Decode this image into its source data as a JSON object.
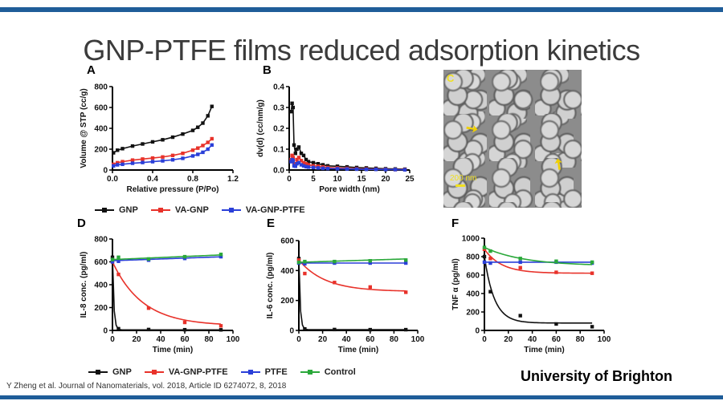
{
  "slide": {
    "title": "GNP-PTFE films reduced adsorption kinetics",
    "citation": "Y Zheng et al. Journal of Nanomaterials, vol. 2018, Article ID 6274072, 8, 2018",
    "affiliation": "University of Brighton",
    "bar_color": "#1f5d99"
  },
  "sem": {
    "label": "C",
    "scale_text": "200 nm"
  },
  "legend_abc": [
    {
      "name": "GNP",
      "color": "#111111"
    },
    {
      "name": "VA-GNP",
      "color": "#e8322a"
    },
    {
      "name": "VA-GNP-PTFE",
      "color": "#2a3fd8"
    }
  ],
  "legend_def": [
    {
      "name": "GNP",
      "color": "#111111"
    },
    {
      "name": "VA-GNP-PTFE",
      "color": "#e8322a"
    },
    {
      "name": "PTFE",
      "color": "#2a3fd8"
    },
    {
      "name": "Control",
      "color": "#2aa83a"
    }
  ],
  "chart_data": [
    {
      "panel": "A",
      "type": "line",
      "xlabel": "Relative pressure (P/Po)",
      "ylabel": "Volume @ STP (cc/g)",
      "xlim": [
        0,
        1.2
      ],
      "ylim": [
        0,
        800
      ],
      "xticks": [
        "0.0",
        "0.4",
        "0.8",
        "1.2"
      ],
      "xtick_values": [
        0,
        0.4,
        0.8,
        1.2
      ],
      "yticks": [
        "0",
        "200",
        "400",
        "600",
        "800"
      ],
      "ytick_values": [
        0,
        200,
        400,
        600,
        800
      ],
      "series": [
        {
          "name": "GNP",
          "color": "#111111",
          "x": [
            0.01,
            0.05,
            0.1,
            0.2,
            0.3,
            0.4,
            0.5,
            0.6,
            0.7,
            0.8,
            0.85,
            0.9,
            0.95,
            0.99
          ],
          "y": [
            165,
            190,
            205,
            230,
            250,
            270,
            290,
            315,
            345,
            380,
            410,
            450,
            520,
            610
          ]
        },
        {
          "name": "VA-GNP",
          "color": "#e8322a",
          "x": [
            0.01,
            0.05,
            0.1,
            0.2,
            0.3,
            0.4,
            0.5,
            0.6,
            0.7,
            0.8,
            0.85,
            0.9,
            0.95,
            0.99
          ],
          "y": [
            55,
            70,
            80,
            95,
            105,
            115,
            125,
            140,
            160,
            190,
            210,
            235,
            265,
            300
          ]
        },
        {
          "name": "VA-GNP-PTFE",
          "color": "#2a3fd8",
          "x": [
            0.01,
            0.05,
            0.1,
            0.2,
            0.3,
            0.4,
            0.5,
            0.6,
            0.7,
            0.8,
            0.85,
            0.9,
            0.95,
            0.99
          ],
          "y": [
            40,
            50,
            55,
            65,
            72,
            80,
            88,
            98,
            112,
            135,
            150,
            170,
            200,
            240
          ]
        }
      ]
    },
    {
      "panel": "B",
      "type": "line",
      "xlabel": "Pore width (nm)",
      "ylabel": "dv(d) (cc/nm/g)",
      "xlim": [
        0,
        25
      ],
      "ylim": [
        0,
        0.4
      ],
      "xticks": [
        "0",
        "5",
        "10",
        "15",
        "20",
        "25"
      ],
      "xtick_values": [
        0,
        5,
        10,
        15,
        20,
        25
      ],
      "yticks": [
        "0.0",
        "0.1",
        "0.2",
        "0.3",
        "0.4"
      ],
      "ytick_values": [
        0,
        0.1,
        0.2,
        0.3,
        0.4
      ],
      "series": [
        {
          "name": "GNP",
          "color": "#111111",
          "x": [
            0.4,
            0.6,
            0.8,
            1,
            1.3,
            1.6,
            2,
            2.5,
            3,
            3.5,
            4,
            5,
            6,
            7,
            8,
            10,
            12,
            14,
            16,
            18,
            20,
            22,
            24
          ],
          "y": [
            0.28,
            0.32,
            0.3,
            0.12,
            0.08,
            0.1,
            0.11,
            0.08,
            0.07,
            0.05,
            0.04,
            0.035,
            0.03,
            0.025,
            0.02,
            0.018,
            0.015,
            0.012,
            0.01,
            0.008,
            0.006,
            0.005,
            0.004
          ]
        },
        {
          "name": "VA-GNP",
          "color": "#e8322a",
          "x": [
            0.4,
            0.6,
            0.8,
            1,
            1.3,
            1.6,
            2,
            2.5,
            3,
            3.5,
            4,
            5,
            6,
            7,
            8,
            10,
            12,
            14,
            16,
            18,
            20,
            22,
            24
          ],
          "y": [
            0.05,
            0.07,
            0.06,
            0.03,
            0.025,
            0.05,
            0.06,
            0.045,
            0.035,
            0.03,
            0.025,
            0.02,
            0.018,
            0.015,
            0.012,
            0.01,
            0.008,
            0.006,
            0.005,
            0.004,
            0.003,
            0.002,
            0.002
          ]
        },
        {
          "name": "VA-GNP-PTFE",
          "color": "#2a3fd8",
          "x": [
            0.4,
            0.6,
            0.8,
            1,
            1.3,
            1.6,
            2,
            2.5,
            3,
            3.5,
            4,
            5,
            6,
            7,
            8,
            10,
            12,
            14,
            16,
            18,
            20,
            22,
            24
          ],
          "y": [
            0.04,
            0.05,
            0.045,
            0.02,
            0.018,
            0.03,
            0.035,
            0.025,
            0.02,
            0.016,
            0.014,
            0.012,
            0.01,
            0.008,
            0.007,
            0.006,
            0.005,
            0.004,
            0.003,
            0.003,
            0.002,
            0.002,
            0.001
          ]
        }
      ]
    },
    {
      "panel": "D",
      "type": "line",
      "xlabel": "Time (min)",
      "ylabel": "IL-8 conc. (pg/ml)",
      "xlim": [
        0,
        100
      ],
      "ylim": [
        0,
        800
      ],
      "xticks": [
        "0",
        "20",
        "40",
        "60",
        "80",
        "100"
      ],
      "xtick_values": [
        0,
        20,
        40,
        60,
        80,
        100
      ],
      "yticks": [
        "0",
        "200",
        "400",
        "600",
        "800"
      ],
      "ytick_values": [
        0,
        200,
        400,
        600,
        800
      ],
      "series": [
        {
          "name": "GNP",
          "color": "#111111",
          "curve": "exp",
          "params": [
            640,
            0.9,
            5
          ],
          "x": [
            0,
            5,
            30,
            60,
            90
          ],
          "y": [
            640,
            15,
            8,
            6,
            5
          ]
        },
        {
          "name": "VA-GNP-PTFE",
          "color": "#e8322a",
          "curve": "exp",
          "params": [
            600,
            0.04,
            40
          ],
          "x": [
            0,
            5,
            30,
            60,
            90
          ],
          "y": [
            600,
            490,
            195,
            70,
            40
          ]
        },
        {
          "name": "PTFE",
          "color": "#2a3fd8",
          "curve": "linear",
          "params": [
            610,
            0.38
          ],
          "x": [
            0,
            5,
            30,
            60,
            90
          ],
          "y": [
            600,
            605,
            615,
            630,
            645
          ]
        },
        {
          "name": "Control",
          "color": "#2aa83a",
          "curve": "linear",
          "params": [
            620,
            0.45
          ],
          "x": [
            0,
            5,
            30,
            60,
            90
          ],
          "y": [
            620,
            640,
            625,
            645,
            665
          ]
        }
      ]
    },
    {
      "panel": "E",
      "type": "line",
      "xlabel": "Time (min)",
      "ylabel": "IL-6 conc. (pg/ml)",
      "xlim": [
        0,
        100
      ],
      "ylim": [
        0,
        600
      ],
      "xticks": [
        "0",
        "20",
        "40",
        "60",
        "80",
        "100"
      ],
      "xtick_values": [
        0,
        20,
        40,
        60,
        80,
        100
      ],
      "yticks": [
        "0",
        "200",
        "400",
        "600"
      ],
      "ytick_values": [
        0,
        200,
        400,
        600
      ],
      "series": [
        {
          "name": "GNP",
          "color": "#111111",
          "curve": "exp",
          "params": [
            480,
            0.9,
            5
          ],
          "x": [
            0,
            5,
            30,
            60,
            90
          ],
          "y": [
            480,
            10,
            6,
            5,
            5
          ]
        },
        {
          "name": "VA-GNP-PTFE",
          "color": "#e8322a",
          "curve": "exp",
          "params": [
            470,
            0.045,
            260
          ],
          "x": [
            0,
            5,
            30,
            60,
            90
          ],
          "y": [
            470,
            380,
            320,
            290,
            255
          ]
        },
        {
          "name": "PTFE",
          "color": "#2a3fd8",
          "curve": "linear",
          "params": [
            450,
            0
          ],
          "x": [
            0,
            5,
            30,
            60,
            90
          ],
          "y": [
            450,
            445,
            450,
            450,
            450
          ]
        },
        {
          "name": "Control",
          "color": "#2aa83a",
          "curve": "linear",
          "params": [
            455,
            0.25
          ],
          "x": [
            0,
            5,
            30,
            60,
            90
          ],
          "y": [
            455,
            460,
            460,
            465,
            470
          ]
        }
      ]
    },
    {
      "panel": "F",
      "type": "line",
      "xlabel": "Time (min)",
      "ylabel": "TNF α (pg/ml)",
      "xlim": [
        0,
        100
      ],
      "ylim": [
        0,
        1000
      ],
      "xticks": [
        "0",
        "20",
        "40",
        "60",
        "80",
        "100"
      ],
      "xtick_values": [
        0,
        20,
        40,
        60,
        80,
        100
      ],
      "yticks": [
        "0",
        "200",
        "400",
        "600",
        "800",
        "1000"
      ],
      "ytick_values": [
        0,
        200,
        400,
        600,
        800,
        1000
      ],
      "series": [
        {
          "name": "GNP",
          "color": "#111111",
          "curve": "exp",
          "params": [
            800,
            0.12,
            80
          ],
          "x": [
            0,
            5,
            30,
            60,
            90
          ],
          "y": [
            800,
            420,
            160,
            70,
            40
          ]
        },
        {
          "name": "VA-GNP-PTFE",
          "color": "#e8322a",
          "curve": "exp",
          "params": [
            880,
            0.07,
            620
          ],
          "x": [
            0,
            5,
            30,
            60,
            90
          ],
          "y": [
            880,
            780,
            680,
            630,
            620
          ]
        },
        {
          "name": "PTFE",
          "color": "#2a3fd8",
          "curve": "linear",
          "params": [
            740,
            0
          ],
          "x": [
            0,
            5,
            30,
            60,
            90
          ],
          "y": [
            740,
            730,
            740,
            740,
            730
          ]
        },
        {
          "name": "Control",
          "color": "#2aa83a",
          "curve": "exp",
          "params": [
            900,
            0.03,
            700
          ],
          "x": [
            0,
            5,
            30,
            60,
            90
          ],
          "y": [
            900,
            860,
            780,
            750,
            740
          ]
        }
      ]
    }
  ],
  "panel_labels": {
    "A": "A",
    "B": "B",
    "D": "D",
    "E": "E",
    "F": "F"
  }
}
